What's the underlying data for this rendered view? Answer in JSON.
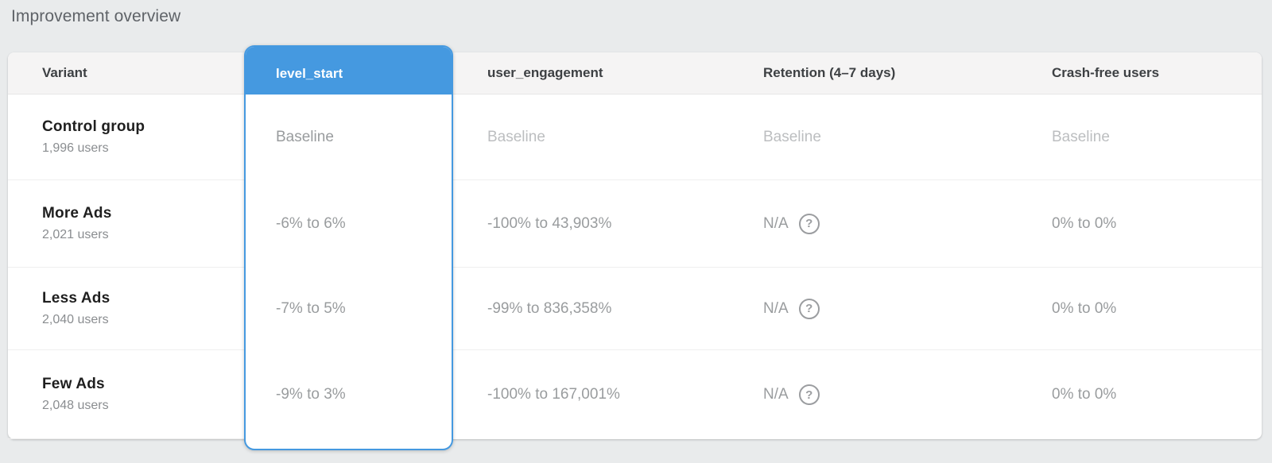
{
  "page": {
    "title": "Improvement overview"
  },
  "colors": {
    "selected_column_blue": "#4599e0",
    "card_background": "#ffffff",
    "page_background": "#e9ebec"
  },
  "table": {
    "help_icon": "?",
    "columns": [
      {
        "label": "Variant",
        "selected": false
      },
      {
        "label": "level_start",
        "selected": true
      },
      {
        "label": "user_engagement",
        "selected": false
      },
      {
        "label": "Retention (4–7 days)",
        "selected": false
      },
      {
        "label": "Crash-free users",
        "selected": false
      }
    ],
    "rows": [
      {
        "variant": "Control group",
        "users": "1,996 users",
        "level_start": "Baseline",
        "user_engagement": "Baseline",
        "retention": "Baseline",
        "crash_free": "Baseline",
        "is_baseline": true
      },
      {
        "variant": "More Ads",
        "users": "2,021 users",
        "level_start": "-6% to 6%",
        "user_engagement": "-100% to 43,903%",
        "retention": "N/A",
        "crash_free": "0% to 0%",
        "is_baseline": false
      },
      {
        "variant": "Less Ads",
        "users": "2,040 users",
        "level_start": "-7% to 5%",
        "user_engagement": "-99% to 836,358%",
        "retention": "N/A",
        "crash_free": "0% to 0%",
        "is_baseline": false
      },
      {
        "variant": "Few Ads",
        "users": "2,048 users",
        "level_start": "-9% to 3%",
        "user_engagement": "-100% to 167,001%",
        "retention": "N/A",
        "crash_free": "0% to 0%",
        "is_baseline": false
      }
    ]
  }
}
